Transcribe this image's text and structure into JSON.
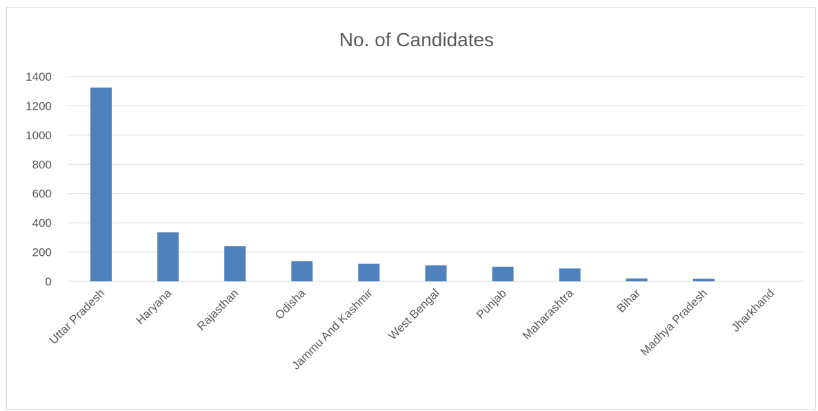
{
  "chart_data": {
    "type": "bar",
    "title": "No. of Candidates",
    "xlabel": "",
    "ylabel": "",
    "categories": [
      "Uttar Pradesh",
      "Haryana",
      "Rajasthan",
      "Odisha",
      "Jammu And Kashmir",
      "West Bengal",
      "Punjab",
      "Maharashtra",
      "Bihar",
      "Madhya Pradesh",
      "Jharkhand"
    ],
    "values": [
      1325,
      335,
      240,
      138,
      120,
      110,
      100,
      88,
      20,
      18,
      0
    ],
    "ylim": [
      0,
      1400
    ],
    "yticks": [
      0,
      200,
      400,
      600,
      800,
      1000,
      1200,
      1400
    ],
    "grid": true,
    "legend": "none",
    "bar_color": "#4f81bd"
  }
}
